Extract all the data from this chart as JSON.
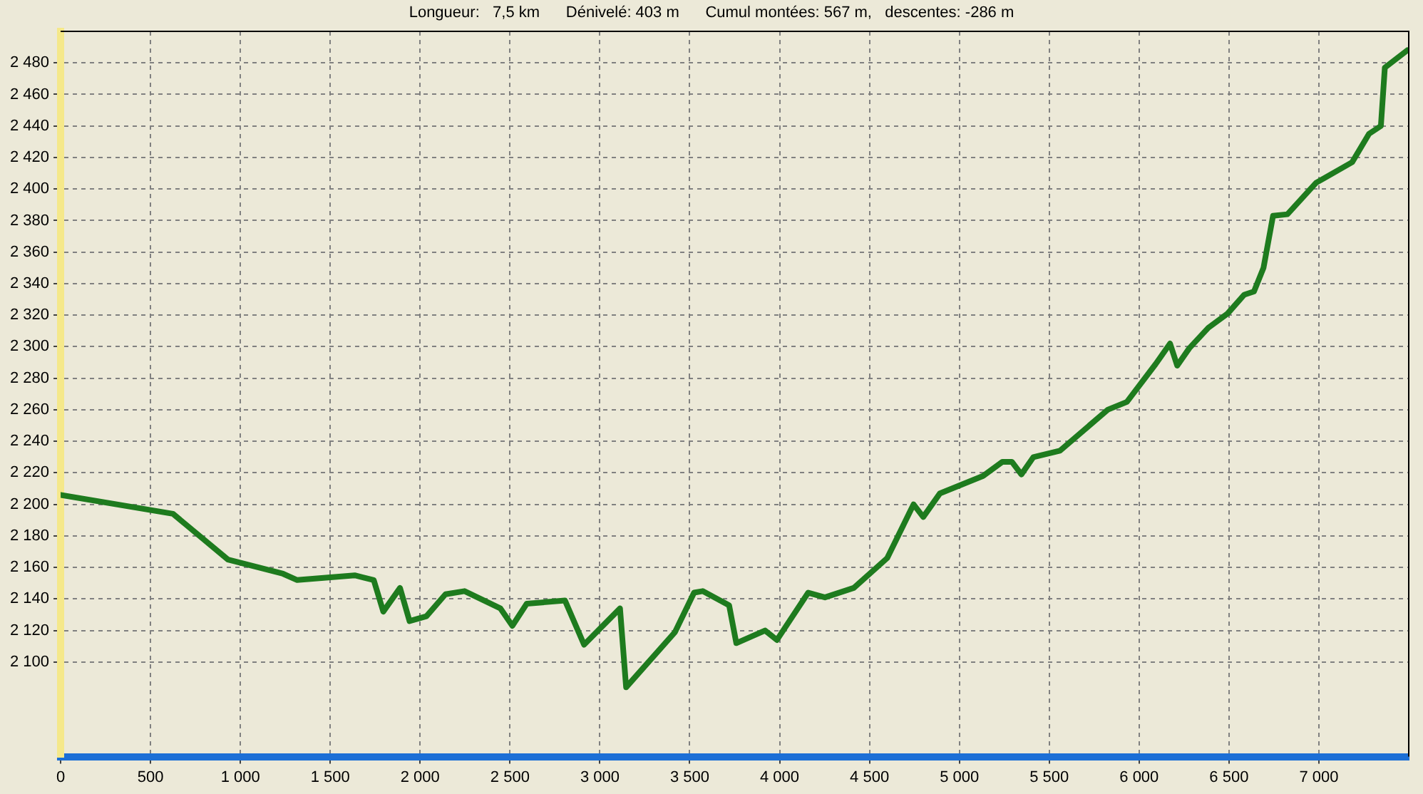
{
  "chart_data": {
    "type": "line",
    "title": "Longueur:   7,5 km      Dénivelé: 403 m      Cumul montées: 567 m,   descentes: -286 m",
    "x": [
      0,
      625,
      931,
      1237,
      1316,
      1636,
      1742,
      1795,
      1888,
      1941,
      2035,
      2141,
      2247,
      2447,
      2513,
      2593,
      2806,
      2912,
      3112,
      3146,
      3418,
      3524,
      3572,
      3719,
      3759,
      3919,
      3985,
      4159,
      4252,
      4412,
      4599,
      4745,
      4799,
      4892,
      5132,
      5239,
      5292,
      5345,
      5412,
      5559,
      5825,
      5932,
      6092,
      6172,
      6212,
      6279,
      6385,
      6492,
      6585,
      6639,
      6692,
      6745,
      6825,
      6985,
      7185,
      7279,
      7345,
      7367,
      7492
    ],
    "series": [
      {
        "color": "#1e7b1e",
        "values": [
          2206,
          2194,
          2165,
          2156,
          2152,
          2155,
          2152,
          2132,
          2147,
          2126,
          2129,
          2143,
          2145,
          2134,
          2123,
          2137,
          2139,
          2111,
          2134,
          2084,
          2119,
          2144,
          2145,
          2136,
          2112,
          2120,
          2114,
          2144,
          2141,
          2147,
          2166,
          2200,
          2192,
          2207,
          2218,
          2227,
          2227,
          2219,
          2230,
          2234,
          2260,
          2265,
          2289,
          2302,
          2288,
          2299,
          2312,
          2321,
          2333,
          2335,
          2350,
          2383,
          2384,
          2404,
          2417,
          2435,
          2440,
          2477,
          2488
        ]
      }
    ],
    "xlim": [
      0,
      7500
    ],
    "ylim": [
      2040,
      2500
    ],
    "xticks": [
      0,
      500,
      {
        "value": 1000,
        "label": "1 000"
      },
      {
        "value": 1500,
        "label": "1 500"
      },
      {
        "value": 2000,
        "label": "2 000"
      },
      {
        "value": 2500,
        "label": "2 500"
      },
      {
        "value": 3000,
        "label": "3 000"
      },
      {
        "value": 3500,
        "label": "3 500"
      },
      {
        "value": 4000,
        "label": "4 000"
      },
      {
        "value": 4500,
        "label": "4 500"
      },
      {
        "value": 5000,
        "label": "5 000"
      },
      {
        "value": 5500,
        "label": "5 500"
      },
      {
        "value": 6000,
        "label": "6 000"
      },
      {
        "value": 6500,
        "label": "6 500"
      },
      {
        "value": 7000,
        "label": "7 000"
      }
    ],
    "yticks": [
      {
        "value": 2100,
        "label": "2 100"
      },
      {
        "value": 2120,
        "label": "2 120"
      },
      {
        "value": 2140,
        "label": "2 140"
      },
      {
        "value": 2160,
        "label": "2 160"
      },
      {
        "value": 2180,
        "label": "2 180"
      },
      {
        "value": 2200,
        "label": "2 200"
      },
      {
        "value": 2220,
        "label": "2 220"
      },
      {
        "value": 2240,
        "label": "2 240"
      },
      {
        "value": 2260,
        "label": "2 260"
      },
      {
        "value": 2280,
        "label": "2 280"
      },
      {
        "value": 2300,
        "label": "2 300"
      },
      {
        "value": 2320,
        "label": "2 320"
      },
      {
        "value": 2340,
        "label": "2 340"
      },
      {
        "value": 2360,
        "label": "2 360"
      },
      {
        "value": 2380,
        "label": "2 380"
      },
      {
        "value": 2400,
        "label": "2 400"
      },
      {
        "value": 2420,
        "label": "2 420"
      },
      {
        "value": 2440,
        "label": "2 440"
      },
      {
        "value": 2460,
        "label": "2 460"
      },
      {
        "value": 2480,
        "label": "2 480"
      }
    ],
    "grid": true,
    "legend": false,
    "marker": "none",
    "line_style": "solid"
  }
}
